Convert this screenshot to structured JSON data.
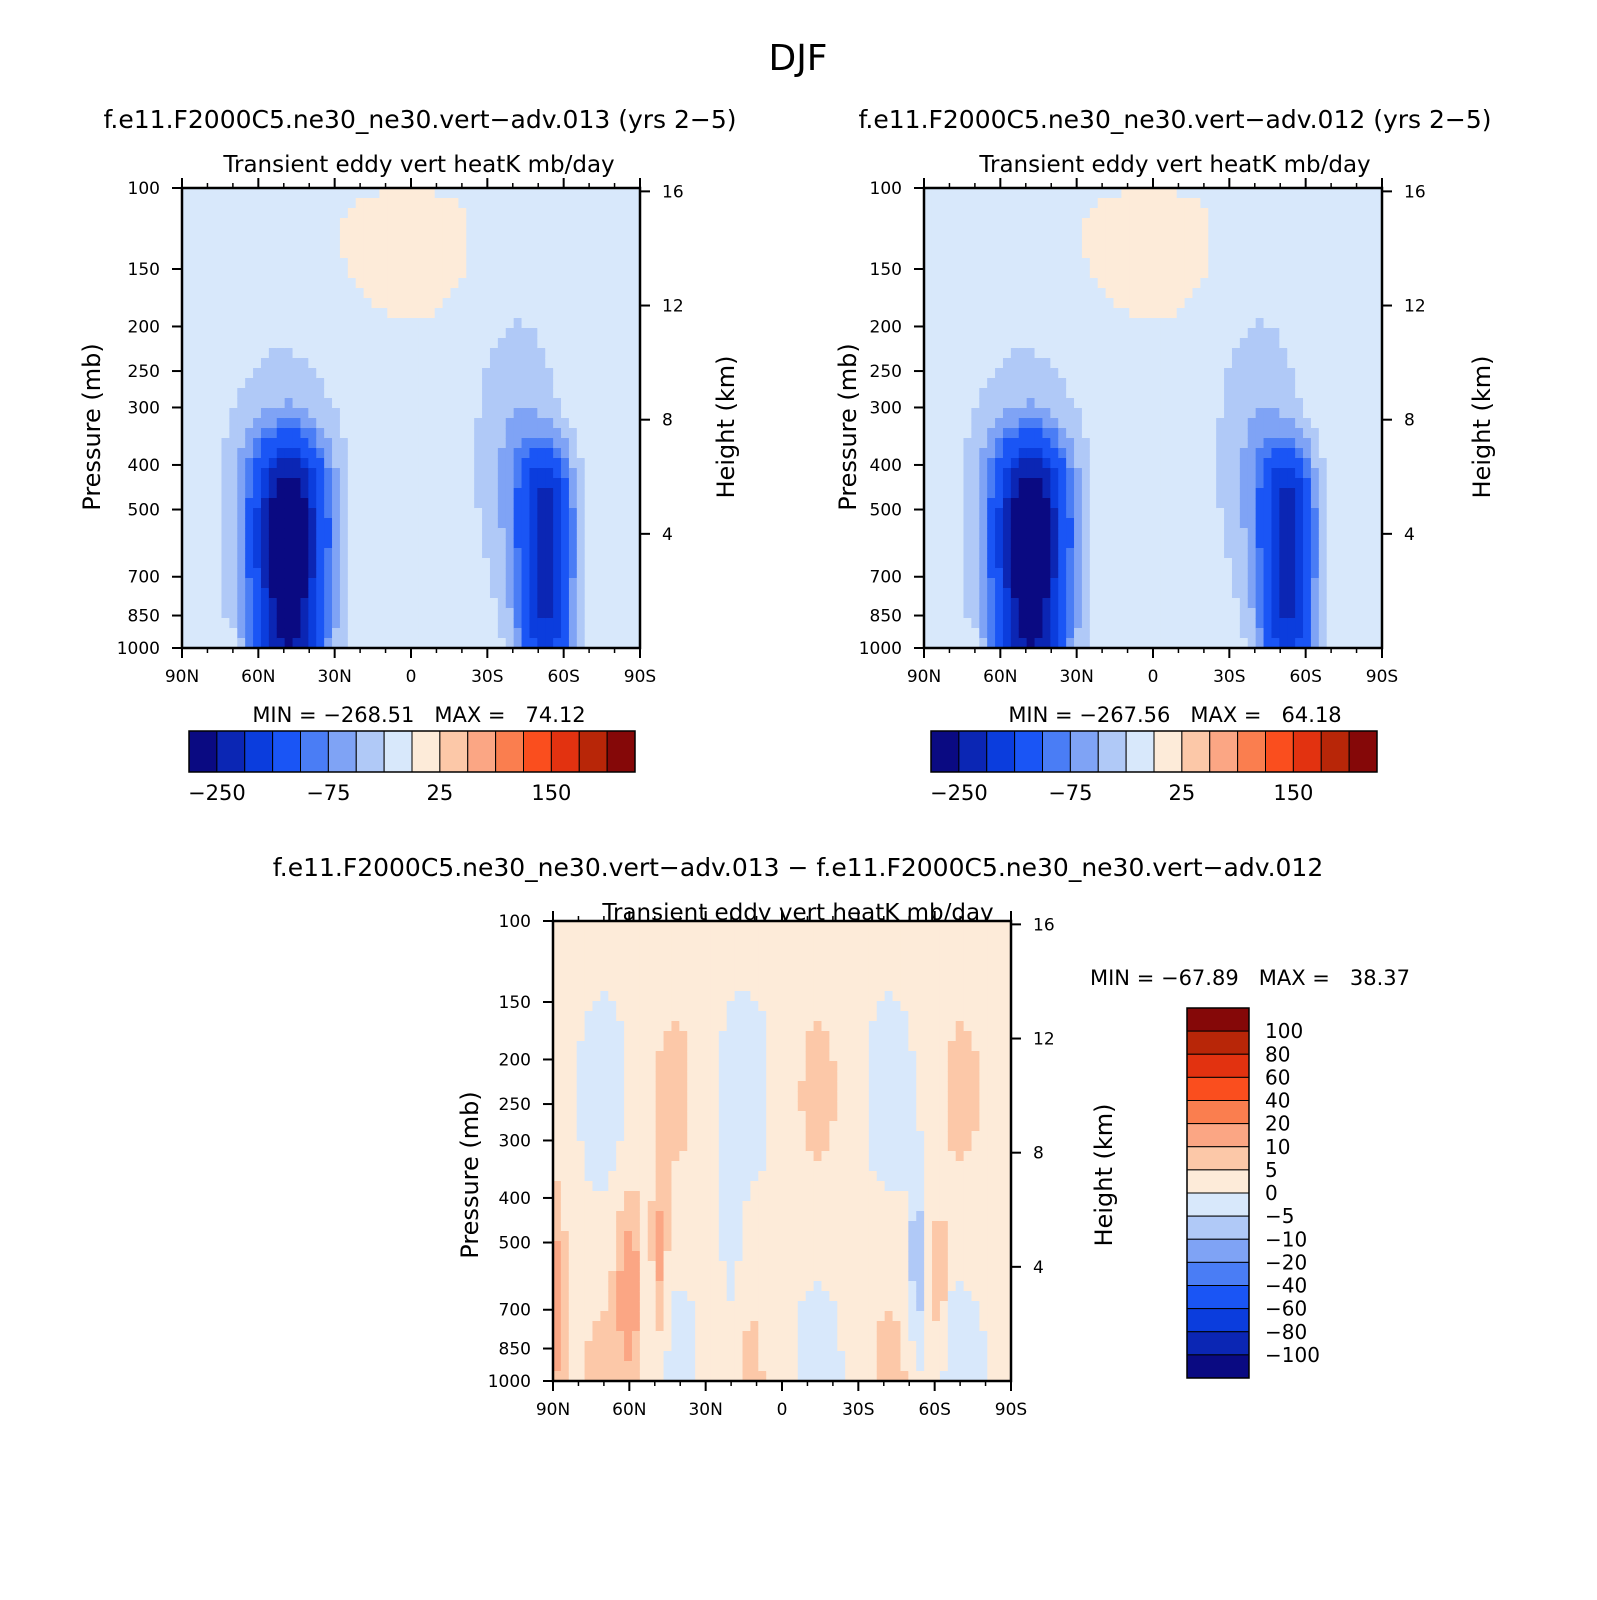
{
  "page_title": "DJF",
  "panels": [
    {
      "title": "f.e11.F2000C5.ne30_ne30.vert−adv.013 (yrs 2−5)",
      "subtitle": "Transient eddy vert heatK mb/day",
      "ylabel": "Pressure (mb)",
      "y2label": "Height (km)",
      "minmax": "MIN = −268.51   MAX =   74.12"
    },
    {
      "title": "f.e11.F2000C5.ne30_ne30.vert−adv.012 (yrs 2−5)",
      "subtitle": "Transient eddy vert heatK mb/day",
      "ylabel": "Pressure (mb)",
      "y2label": "Height (km)",
      "minmax": "MIN = −267.56   MAX =   64.18"
    },
    {
      "title": "f.e11.F2000C5.ne30_ne30.vert−adv.013 − f.e11.F2000C5.ne30_ne30.vert−adv.012",
      "subtitle": "Transient eddy vert heatK mb/day",
      "ylabel": "Pressure (mb)",
      "y2label": "Height (km)",
      "minmax": "MIN = −67.89   MAX =   38.37"
    }
  ],
  "chart_data": [
    {
      "type": "heatmap",
      "panel": "f.e11.F2000C5.ne30_ne30.vert−adv.013 (yrs 2−5)",
      "x_ticks": [
        "90N",
        "60N",
        "30N",
        "0",
        "30S",
        "60S",
        "90S"
      ],
      "y_ticks": [
        "100",
        "150",
        "200",
        "250",
        "300",
        "400",
        "500",
        "700",
        "850",
        "1000"
      ],
      "y2_ticks": [
        "16",
        "12",
        "8",
        "4"
      ],
      "ylim": [
        1000,
        100
      ],
      "yscale": "log",
      "colorbar_ticks": [
        "−250",
        "−75",
        "25",
        "150"
      ],
      "min": -268.51,
      "max": 74.12
    },
    {
      "type": "heatmap",
      "panel": "f.e11.F2000C5.ne30_ne30.vert−adv.012 (yrs 2−5)",
      "x_ticks": [
        "90N",
        "60N",
        "30N",
        "0",
        "30S",
        "60S",
        "90S"
      ],
      "y_ticks": [
        "100",
        "150",
        "200",
        "250",
        "300",
        "400",
        "500",
        "700",
        "850",
        "1000"
      ],
      "y2_ticks": [
        "16",
        "12",
        "8",
        "4"
      ],
      "ylim": [
        1000,
        100
      ],
      "yscale": "log",
      "colorbar_ticks": [
        "−250",
        "−75",
        "25",
        "150"
      ],
      "min": -267.56,
      "max": 64.18
    },
    {
      "type": "heatmap",
      "panel": "f.e11.F2000C5.ne30_ne30.vert−adv.013 − f.e11.F2000C5.ne30_ne30.vert−adv.012",
      "x_ticks": [
        "90N",
        "60N",
        "30N",
        "0",
        "30S",
        "60S",
        "90S"
      ],
      "y_ticks": [
        "100",
        "150",
        "200",
        "250",
        "300",
        "400",
        "500",
        "700",
        "850",
        "1000"
      ],
      "y2_ticks": [
        "16",
        "12",
        "8",
        "4"
      ],
      "ylim": [
        1000,
        100
      ],
      "yscale": "log",
      "colorbar_levels": [
        "100",
        "80",
        "60",
        "40",
        "20",
        "10",
        "5",
        "0",
        "−5",
        "−10",
        "−20",
        "−40",
        "−60",
        "−80",
        "−100"
      ],
      "min": -67.89,
      "max": 38.37
    }
  ],
  "colors": {
    "palette": [
      "#0a0a82",
      "#0b26b4",
      "#0b3ddd",
      "#1a55f5",
      "#4a7df5",
      "#7fa3f5",
      "#b0c9f7",
      "#d8e8fb",
      "#fdebd9",
      "#fcc8a8",
      "#fba684",
      "#fa7e4f",
      "#fa4e1e",
      "#e23210",
      "#b82608",
      "#850808"
    ]
  }
}
